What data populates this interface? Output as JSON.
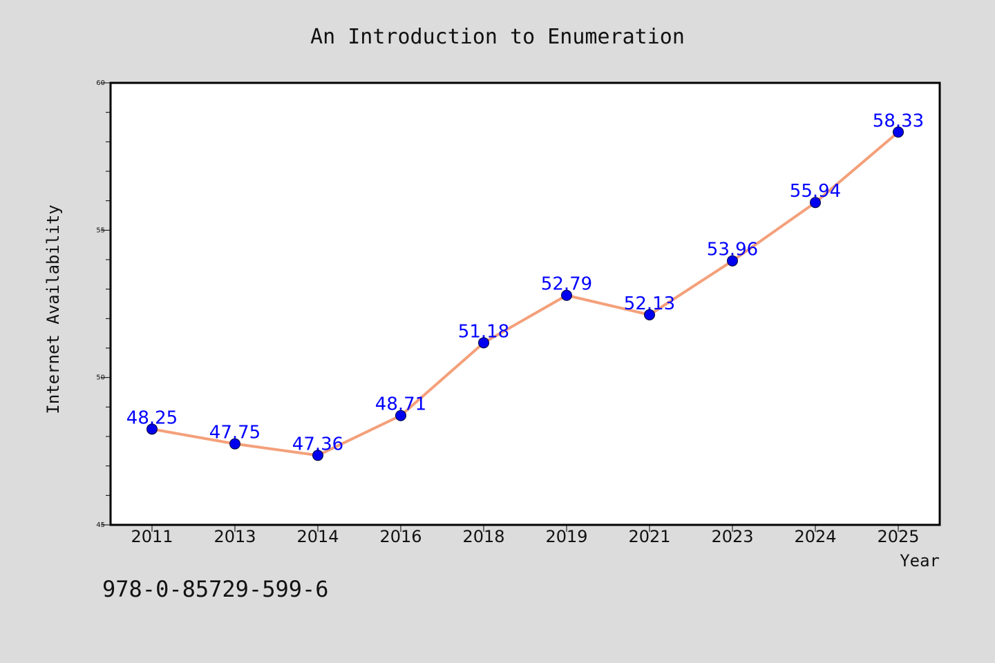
{
  "chart_data": {
    "type": "line",
    "title": "An Introduction to Enumeration",
    "xlabel": "Year",
    "ylabel": "Internet Availability",
    "categories": [
      "2011",
      "2013",
      "2014",
      "2016",
      "2018",
      "2019",
      "2021",
      "2023",
      "2024",
      "2025"
    ],
    "values": [
      48.25,
      47.75,
      47.36,
      48.71,
      51.18,
      52.79,
      52.13,
      53.96,
      55.94,
      58.33
    ],
    "data_labels": [
      "48.25",
      "47.75",
      "47.36",
      "48.71",
      "51.18",
      "52.79",
      "52.13",
      "53.96",
      "55.94",
      "58.33"
    ],
    "ylim": [
      45,
      60
    ],
    "y_ticks": [
      "45",
      "50",
      "55",
      "60"
    ],
    "grid": false,
    "colors": {
      "line": "#f4a07a",
      "marker": "#0000ee",
      "labels": "#0000ff",
      "background": "#dcdcdc",
      "plot_background": "#ffffff"
    }
  },
  "footer": {
    "isbn": "978-0-85729-599-6"
  }
}
